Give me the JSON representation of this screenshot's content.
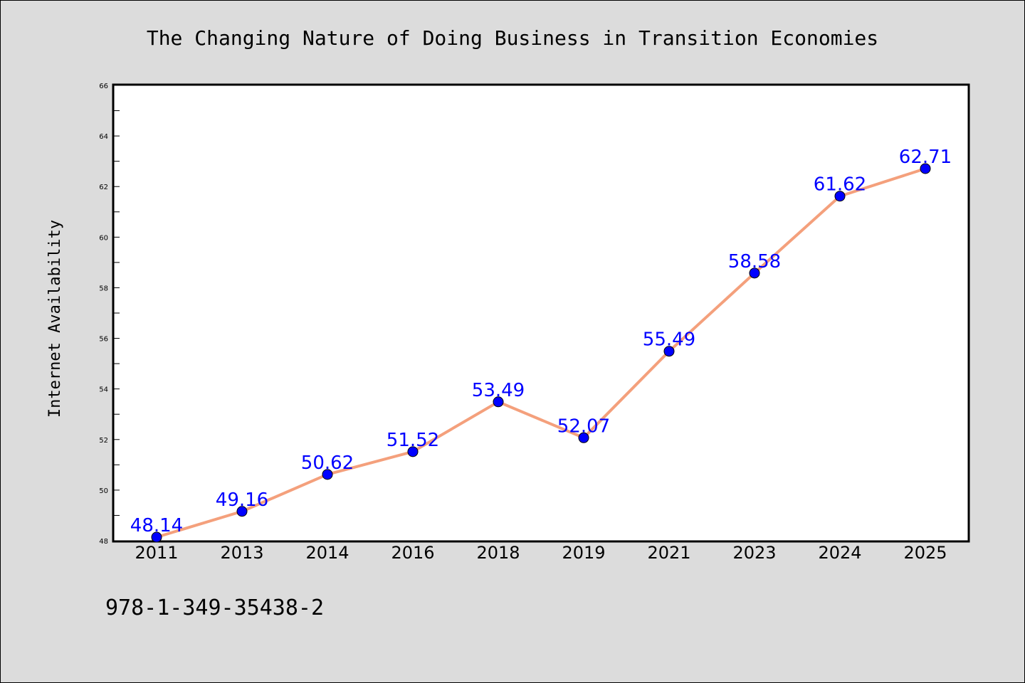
{
  "chart_data": {
    "type": "line",
    "title": "The Changing Nature of Doing Business in Transition Economies",
    "xlabel": "",
    "ylabel": "Internet Availability",
    "categories": [
      "2011",
      "2013",
      "2014",
      "2016",
      "2018",
      "2019",
      "2021",
      "2023",
      "2024",
      "2025"
    ],
    "series": [
      {
        "values": [
          48.14,
          49.16,
          50.62,
          51.52,
          53.49,
          52.07,
          55.49,
          58.58,
          61.62,
          62.71
        ],
        "labels": [
          "48.14",
          "49.16",
          "50.62",
          "51.52",
          "53.49",
          "52.07",
          "55.49",
          "58.58",
          "61.62",
          "62.71"
        ]
      }
    ],
    "ylim": [
      48,
      66
    ],
    "yticks": [
      "48",
      "50",
      "52",
      "54",
      "56",
      "58",
      "60",
      "62",
      "64",
      "66"
    ],
    "grid": false,
    "colors": {
      "line": "#f4a07c",
      "marker": "#0000ff",
      "label": "#0000ff",
      "background": "#dcdcdc",
      "plot_background": "#ffffff"
    }
  },
  "footer": {
    "isbn": "978-1-349-35438-2"
  }
}
